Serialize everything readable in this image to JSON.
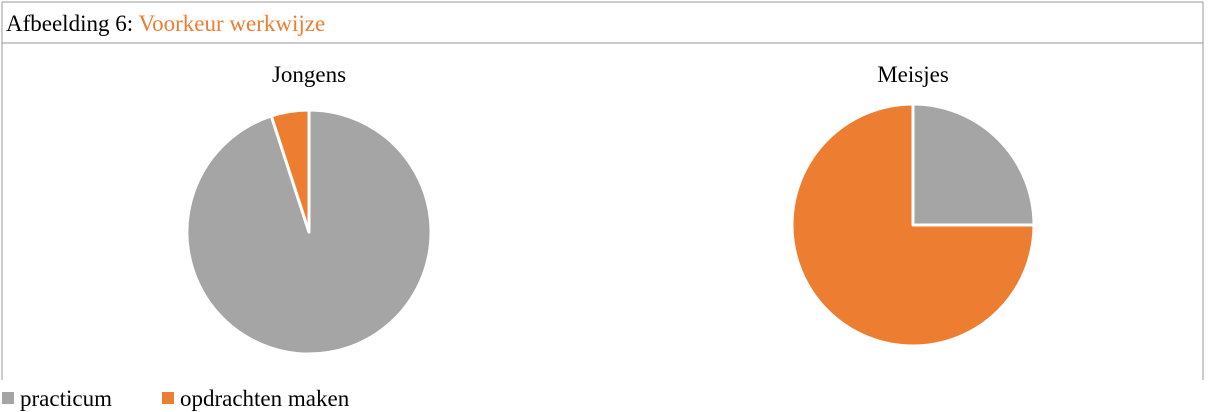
{
  "caption": {
    "label": "Afbeelding 6:",
    "title": "Voorkeur werkwijze"
  },
  "chart_data": [
    {
      "type": "pie",
      "title": "Jongens",
      "categories": [
        "practicum",
        "opdrachten maken"
      ],
      "values": [
        95,
        5
      ],
      "colors": [
        "#a5a5a5",
        "#ed7d31"
      ]
    },
    {
      "type": "pie",
      "title": "Meisjes",
      "categories": [
        "practicum",
        "opdrachten maken"
      ],
      "values": [
        25,
        75
      ],
      "colors": [
        "#a5a5a5",
        "#ed7d31"
      ]
    }
  ]
}
